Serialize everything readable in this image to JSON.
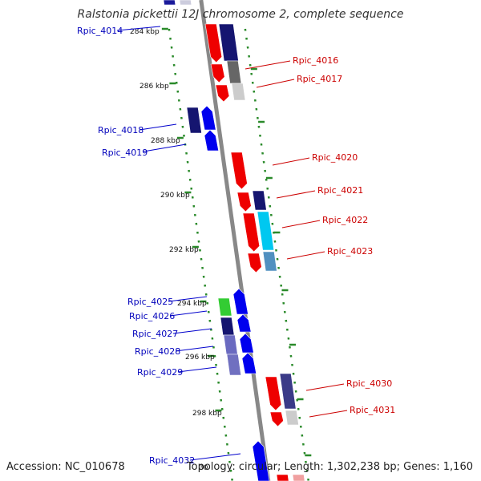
{
  "title": "Ralstonia pickettii 12J chromosome 2, complete sequence",
  "footer": {
    "accession": "Accession: NC_010678",
    "topology": "Topology: circular; Length: 1,302,238 bp; Genes: 1,160"
  },
  "colors": {
    "backbone": "#888888",
    "ruler": "#2a8a2a",
    "label_left": "#0000bb",
    "label_right": "#cc0000",
    "label_line_left": "#0000cc",
    "label_line_right": "#cc0000"
  },
  "scale_labels": [
    "284 kbp",
    "286 kbp",
    "288 kbp",
    "290 kbp",
    "292 kbp",
    "294 kbp",
    "296 kbp",
    "298 kbp",
    "30"
  ],
  "genes": [
    {
      "name": "Rpic_4014",
      "side": "left"
    },
    {
      "name": "Rpic_4016",
      "side": "right"
    },
    {
      "name": "Rpic_4017",
      "side": "right"
    },
    {
      "name": "Rpic_4018",
      "side": "left"
    },
    {
      "name": "Rpic_4019",
      "side": "left"
    },
    {
      "name": "Rpic_4020",
      "side": "right"
    },
    {
      "name": "Rpic_4021",
      "side": "right"
    },
    {
      "name": "Rpic_4022",
      "side": "right"
    },
    {
      "name": "Rpic_4023",
      "side": "right"
    },
    {
      "name": "Rpic_4025",
      "side": "left"
    },
    {
      "name": "Rpic_4026",
      "side": "left"
    },
    {
      "name": "Rpic_4027",
      "side": "left"
    },
    {
      "name": "Rpic_4028",
      "side": "left"
    },
    {
      "name": "Rpic_4029",
      "side": "left"
    },
    {
      "name": "Rpic_4030",
      "side": "right"
    },
    {
      "name": "Rpic_4031",
      "side": "right"
    },
    {
      "name": "Rpic_4032",
      "side": "left"
    }
  ]
}
